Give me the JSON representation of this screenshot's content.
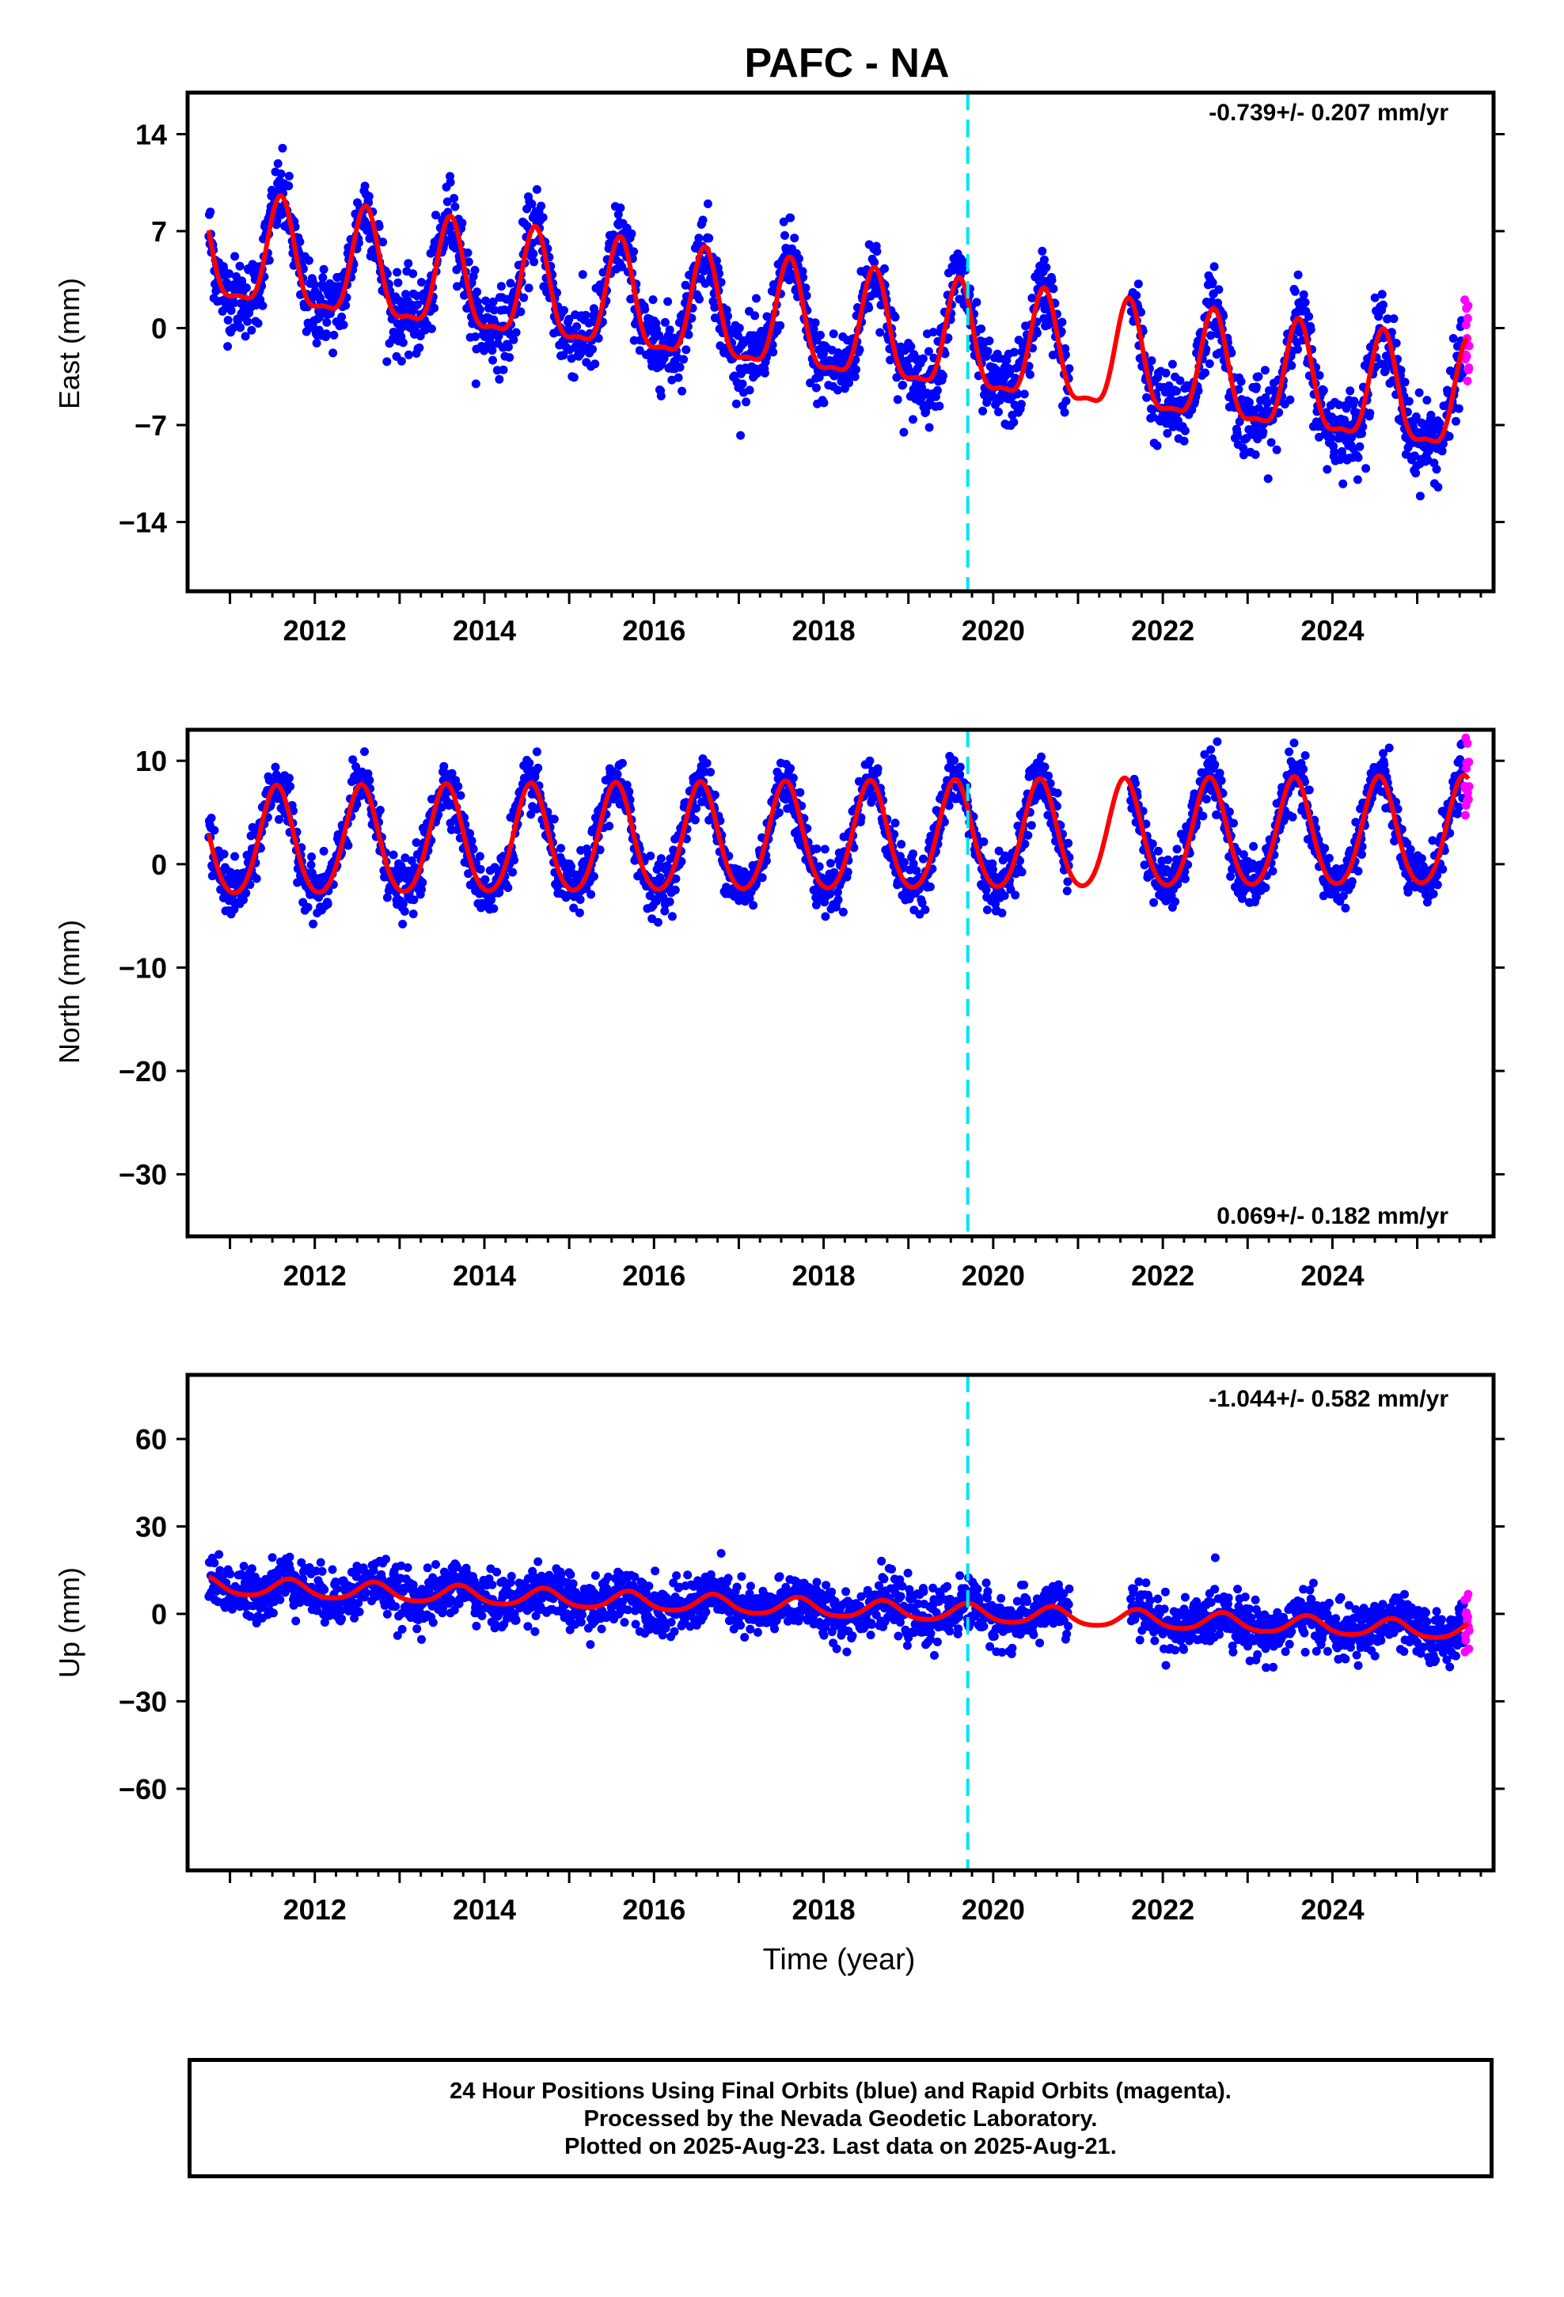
{
  "title": "PAFC - NA",
  "colors": {
    "final_orbits": "#0000ff",
    "rapid_orbits": "#ff00ff",
    "model": "#ff0000",
    "event_line": "#00e5ee",
    "frame": "#000000"
  },
  "chart_data": [
    {
      "type": "scatter",
      "ylabel": "East (mm)",
      "rate_label": "-0.739+/- 0.207 mm/yr",
      "rate_position": "top-right",
      "xlim": [
        2010.5,
        2025.9
      ],
      "ylim": [
        -19,
        17
      ],
      "yticks": [
        -14,
        -7,
        0,
        7,
        14
      ],
      "xticks": [
        2012,
        2014,
        2016,
        2018,
        2020,
        2022,
        2024
      ],
      "event_line_x": 2019.7,
      "grid": false,
      "model": {
        "slope": -0.739,
        "ref": 2010.75,
        "offset": 5.2,
        "amp": 3.8,
        "phase_peak": 0.6,
        "semi_amp": 1.2
      },
      "series": [
        {
          "values_note": "",
          "color": "#0000ff"
        }
      ]
    },
    {
      "type": "scatter",
      "ylabel": "North (mm)",
      "rate_label": "0.069+/- 0.182 mm/yr",
      "rate_position": "bottom-right",
      "xlim": [
        2010.5,
        2025.9
      ],
      "ylim": [
        -36,
        13
      ],
      "yticks": [
        -30,
        -20,
        -10,
        0,
        10
      ],
      "xticks": [
        2012,
        2014,
        2016,
        2018,
        2020,
        2022,
        2024
      ],
      "event_line_x": 2019.7,
      "grid": false,
      "model": {
        "slope": 0.069,
        "ref": 2010.75,
        "offset": 1.8,
        "amp": 5.2,
        "phase_peak": 0.55,
        "semi_amp": 0.6
      }
    },
    {
      "type": "scatter",
      "ylabel": "Up (mm)",
      "rate_label": "-1.044+/- 0.582 mm/yr",
      "rate_position": "top-right",
      "xlim": [
        2010.5,
        2025.9
      ],
      "ylim": [
        -88,
        82
      ],
      "yticks": [
        -60,
        -30,
        0,
        30,
        60
      ],
      "xticks": [
        2012,
        2014,
        2016,
        2018,
        2020,
        2022,
        2024
      ],
      "event_line_x": 2019.7,
      "grid": false,
      "xlabel": "Time (year)",
      "model": {
        "slope": -1.044,
        "ref": 2010.75,
        "offset": 9.5,
        "amp": 3.0,
        "phase_peak": 0.7,
        "semi_amp": 0.5
      }
    }
  ],
  "footer": {
    "line1": "24 Hour Positions Using Final Orbits (blue) and Rapid Orbits (magenta).",
    "line2": "Processed by the Nevada Geodetic Laboratory.",
    "line3": "Plotted on 2025-Aug-23. Last data on 2025-Aug-21."
  }
}
